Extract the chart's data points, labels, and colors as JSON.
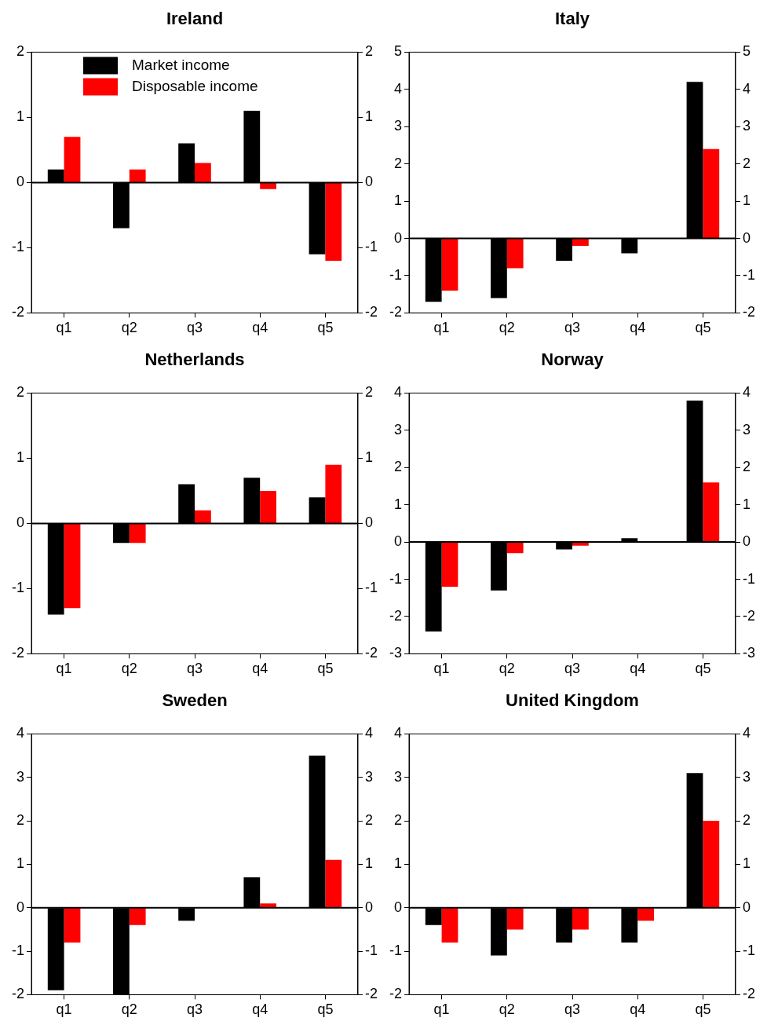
{
  "chart_data": [
    {
      "type": "bar",
      "title": "Ireland",
      "categories": [
        "q1",
        "q2",
        "q3",
        "q4",
        "q5"
      ],
      "legend": "top left",
      "ylim": [
        -2,
        2
      ],
      "yticks": [
        -2,
        -1,
        0,
        1,
        2
      ],
      "y2lim": [
        -2,
        2
      ],
      "y2ticks": [
        -2,
        -1,
        0,
        1,
        2
      ],
      "ref_lines": [
        {
          "axis": "y",
          "value": 0,
          "color": "#000000"
        }
      ],
      "series": [
        {
          "name": "Market income",
          "color": "#000000",
          "values": [
            0.2,
            -0.7,
            0.6,
            1.1,
            -1.1
          ]
        },
        {
          "name": "Disposable income",
          "color": "#ff0000",
          "values": [
            0.7,
            0.2,
            0.3,
            -0.1,
            -1.2
          ]
        }
      ]
    },
    {
      "type": "bar",
      "title": "Italy",
      "categories": [
        "q1",
        "q2",
        "q3",
        "q4",
        "q5"
      ],
      "ylim": [
        -2,
        5
      ],
      "yticks": [
        -2,
        -1,
        0,
        1,
        2,
        3,
        4,
        5
      ],
      "y2lim": [
        -2,
        5
      ],
      "y2ticks": [
        -2,
        -1,
        0,
        1,
        2,
        3,
        4,
        5
      ],
      "ref_lines": [
        {
          "axis": "y",
          "value": 0,
          "color": "#000000"
        }
      ],
      "series": [
        {
          "color": "#000000",
          "values": [
            -1.7,
            -1.6,
            -0.6,
            -0.4,
            4.2
          ]
        },
        {
          "color": "#ff0000",
          "values": [
            -1.4,
            -0.8,
            -0.2,
            0,
            2.4
          ]
        }
      ]
    },
    {
      "type": "bar",
      "title": "Netherlands",
      "categories": [
        "q1",
        "q2",
        "q3",
        "q4",
        "q5"
      ],
      "ylim": [
        -2,
        2
      ],
      "yticks": [
        -2,
        -1,
        0,
        1,
        2
      ],
      "y2lim": [
        -2,
        2
      ],
      "y2ticks": [
        -2,
        -1,
        0,
        1,
        2
      ],
      "ref_lines": [
        {
          "axis": "y",
          "value": 0,
          "color": "#000000"
        }
      ],
      "series": [
        {
          "color": "#000000",
          "values": [
            -1.4,
            -0.3,
            0.6,
            0.7,
            0.4
          ]
        },
        {
          "color": "#ff0000",
          "values": [
            -1.3,
            -0.3,
            0.2,
            0.5,
            0.9
          ]
        }
      ]
    },
    {
      "type": "bar",
      "title": "Norway",
      "categories": [
        "q1",
        "q2",
        "q3",
        "q4",
        "q5"
      ],
      "ylim": [
        -3,
        4
      ],
      "yticks": [
        -3,
        -2,
        -1,
        0,
        1,
        2,
        3,
        4
      ],
      "y2lim": [
        -3,
        4
      ],
      "y2ticks": [
        -3,
        -2,
        -1,
        0,
        1,
        2,
        3,
        4
      ],
      "ref_lines": [
        {
          "axis": "y",
          "value": 0,
          "color": "#000000"
        }
      ],
      "series": [
        {
          "color": "#000000",
          "values": [
            -2.4,
            -1.3,
            -0.2,
            0.1,
            3.8
          ]
        },
        {
          "color": "#ff0000",
          "values": [
            -1.2,
            -0.3,
            -0.1,
            0,
            1.6
          ]
        }
      ]
    },
    {
      "type": "bar",
      "title": "Sweden",
      "categories": [
        "q1",
        "q2",
        "q3",
        "q4",
        "q5"
      ],
      "ylim": [
        -2,
        4
      ],
      "yticks": [
        -2,
        -1,
        0,
        1,
        2,
        3,
        4
      ],
      "y2lim": [
        -2,
        4
      ],
      "y2ticks": [
        -2,
        -1,
        0,
        1,
        2,
        3,
        4
      ],
      "ref_lines": [
        {
          "axis": "y",
          "value": 0,
          "color": "#000000"
        }
      ],
      "series": [
        {
          "color": "#000000",
          "values": [
            -1.9,
            -2,
            -0.3,
            0.7,
            3.5
          ]
        },
        {
          "color": "#ff0000",
          "values": [
            -0.8,
            -0.4,
            0,
            0.1,
            1.1
          ]
        }
      ]
    },
    {
      "type": "bar",
      "title": "United Kingdom",
      "categories": [
        "q1",
        "q2",
        "q3",
        "q4",
        "q5"
      ],
      "ylim": [
        -2,
        4
      ],
      "yticks": [
        -2,
        -1,
        0,
        1,
        2,
        3,
        4
      ],
      "y2lim": [
        -2,
        4
      ],
      "y2ticks": [
        -2,
        -1,
        0,
        1,
        2,
        3,
        4
      ],
      "ref_lines": [
        {
          "axis": "y",
          "value": 0,
          "color": "#000000"
        }
      ],
      "series": [
        {
          "color": "#000000",
          "values": [
            -0.4,
            -1.1,
            -0.8,
            -0.8,
            3.1
          ]
        },
        {
          "color": "#ff0000",
          "values": [
            -0.8,
            -0.5,
            -0.5,
            -0.3,
            2
          ]
        }
      ]
    }
  ]
}
